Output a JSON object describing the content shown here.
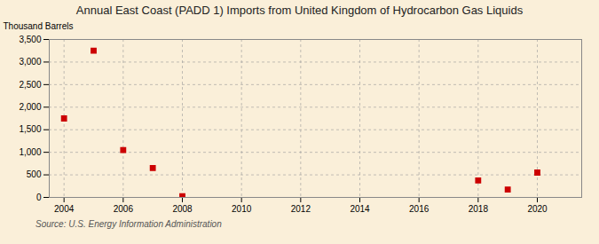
{
  "chart_data": {
    "type": "scatter",
    "title": "Annual East Coast (PADD 1) Imports from United Kingdom of Hydrocarbon Gas Liquids",
    "ylabel": "Thousand Barrels",
    "source": "Source: U.S. Energy Information Administration",
    "x": [
      2004,
      2005,
      2006,
      2007,
      2008,
      2018,
      2019,
      2020
    ],
    "values": [
      1750,
      3250,
      1050,
      650,
      25,
      375,
      175,
      550
    ],
    "color": "#cc0000",
    "marker": "square",
    "xlim": [
      2003.5,
      2021.5
    ],
    "ylim": [
      0,
      3500
    ],
    "xticks": [
      2004,
      2006,
      2008,
      2010,
      2012,
      2014,
      2016,
      2018,
      2020
    ],
    "yticks": [
      0,
      500,
      {
        "value": 1000,
        "label": "1,000"
      },
      {
        "value": 1500,
        "label": "1,500"
      },
      {
        "value": 2000,
        "label": "2,000"
      },
      {
        "value": 2500,
        "label": "2,500"
      },
      {
        "value": 3000,
        "label": "3,000"
      },
      {
        "value": 3500,
        "label": "3,500"
      }
    ],
    "grid": true
  }
}
